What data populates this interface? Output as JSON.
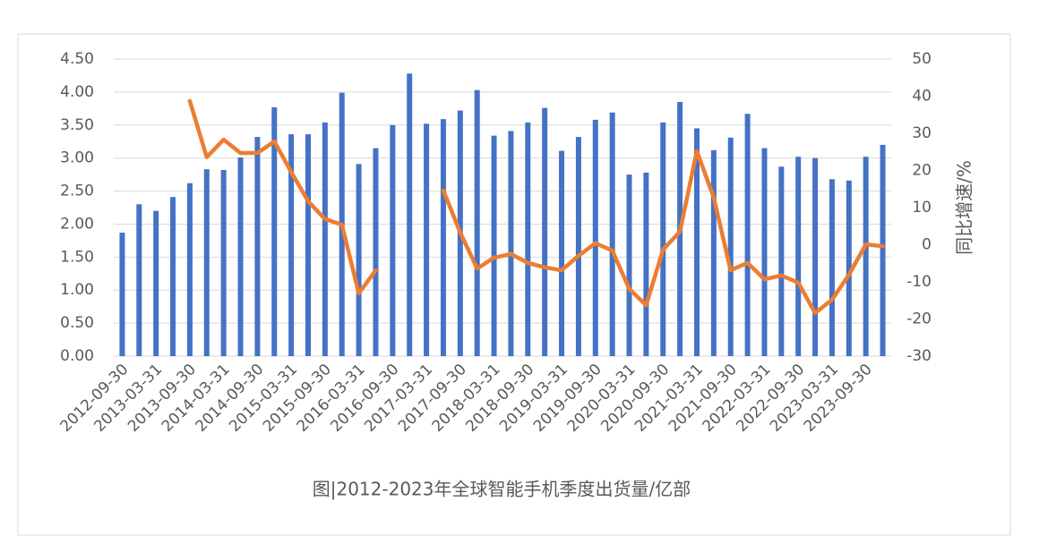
{
  "chart_data": {
    "type": "bar_line",
    "title": "图|2012-2023年全球智能手机季度出货量/亿部",
    "y2label": "同比增速/%",
    "categories": [
      "2012-09-30",
      null,
      "2013-03-31",
      null,
      "2013-09-30",
      null,
      "2014-03-31",
      null,
      "2014-09-30",
      null,
      "2015-03-31",
      null,
      "2015-09-30",
      null,
      "2016-03-31",
      null,
      "2016-09-30",
      null,
      "2017-03-31",
      null,
      "2017-09-30",
      null,
      "2018-03-31",
      null,
      "2018-09-30",
      null,
      "2019-03-31",
      null,
      "2019-09-30",
      null,
      "2020-03-31",
      null,
      "2020-09-30",
      null,
      "2021-03-31",
      null,
      "2021-09-30",
      null,
      "2022-03-31",
      null,
      "2022-09-30",
      null,
      "2023-03-31",
      null,
      "2023-09-30",
      null
    ],
    "series": [
      {
        "type": "bar",
        "color": "#4472c4",
        "values": [
          1.87,
          2.3,
          2.2,
          2.41,
          2.62,
          2.83,
          2.82,
          3.01,
          3.32,
          3.77,
          3.36,
          3.36,
          3.54,
          3.99,
          2.91,
          3.15,
          3.5,
          4.28,
          3.52,
          3.59,
          3.72,
          4.03,
          3.34,
          3.41,
          3.54,
          3.76,
          3.11,
          3.32,
          3.58,
          3.69,
          2.75,
          2.78,
          3.54,
          3.85,
          3.45,
          3.12,
          3.31,
          3.67,
          3.15,
          2.87,
          3.02,
          3.0,
          2.68,
          2.66,
          3.02,
          3.2
        ]
      },
      {
        "type": "line",
        "axis": "y2",
        "color": "#ed7d31",
        "values": [
          null,
          null,
          null,
          null,
          38.7,
          23.6,
          28.3,
          24.7,
          24.7,
          27.8,
          19.6,
          11.7,
          6.9,
          5.4,
          -13.1,
          -6.9,
          null,
          null,
          null,
          14.6,
          3.3,
          -6.4,
          -3.5,
          -2.5,
          -4.9,
          -6.1,
          -6.9,
          -3.0,
          0.4,
          -1.6,
          -11.9,
          -16.3,
          -1.3,
          3.5,
          25.2,
          12.7,
          -6.9,
          -4.9,
          -9.3,
          -8.3,
          -10.2,
          -18.4,
          -14.8,
          -8.1,
          0.1,
          -0.4
        ]
      }
    ],
    "ylim": [
      0,
      4.5
    ],
    "yticks": [
      {
        "value": 0,
        "label": "0.00"
      },
      {
        "value": 0.5,
        "label": "0.50"
      },
      {
        "value": 1,
        "label": "1.00"
      },
      {
        "value": 1.5,
        "label": "1.50"
      },
      {
        "value": 2,
        "label": "2.00"
      },
      {
        "value": 2.5,
        "label": "2.50"
      },
      {
        "value": 3,
        "label": "3.00"
      },
      {
        "value": 3.5,
        "label": "3.50"
      },
      {
        "value": 4,
        "label": "4.00"
      },
      {
        "value": 4.5,
        "label": "4.50"
      }
    ],
    "y2lim": [
      -30,
      50
    ],
    "y2ticks": [
      -30,
      -20,
      -10,
      0,
      10,
      20,
      30,
      40,
      50
    ],
    "grid": true
  }
}
